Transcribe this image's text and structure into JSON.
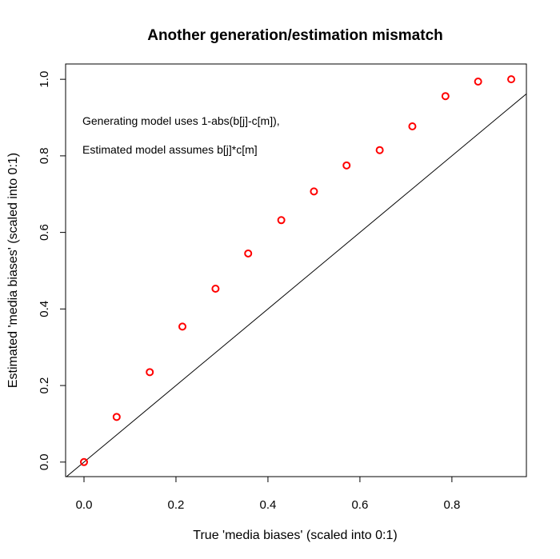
{
  "chart_data": {
    "type": "scatter",
    "title": "Another generation/estimation mismatch",
    "xlabel": "True 'media biases' (scaled into 0:1)",
    "ylabel": "Estimated 'media biases' (scaled into 0:1)",
    "xlim": [
      -0.04,
      0.962
    ],
    "ylim": [
      -0.038,
      1.04
    ],
    "x_ticks": [
      0.0,
      0.2,
      0.4,
      0.6,
      0.8
    ],
    "x_tick_labels": [
      "0.0",
      "0.2",
      "0.4",
      "0.6",
      "0.8"
    ],
    "y_ticks": [
      0.0,
      0.2,
      0.4,
      0.6,
      0.8,
      1.0
    ],
    "y_tick_labels": [
      "0.0",
      "0.2",
      "0.4",
      "0.6",
      "0.8",
      "1.0"
    ],
    "grid": false,
    "legend": "none",
    "point_color": "#ff0000",
    "reference_line": {
      "type": "identity",
      "color": "#000000"
    },
    "annotations": [
      "Generating model uses 1-abs(b[j]-c[m]),",
      "Estimated model assumes b[j]*c[m]"
    ],
    "series": [
      {
        "x": [
          0.0,
          0.071,
          0.143,
          0.214,
          0.286,
          0.357,
          0.429,
          0.5,
          0.571,
          0.643,
          0.714,
          0.786,
          0.857,
          0.929
        ],
        "y": [
          0.0,
          0.118,
          0.235,
          0.354,
          0.453,
          0.545,
          0.632,
          0.707,
          0.775,
          0.815,
          0.877,
          0.956,
          0.994,
          1.0
        ]
      }
    ]
  }
}
